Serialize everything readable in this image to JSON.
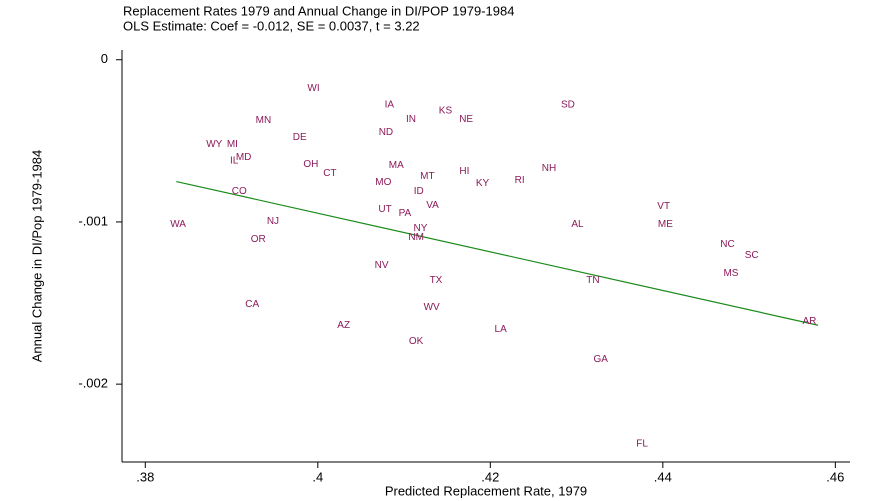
{
  "chart_data": {
    "type": "scatter",
    "title": "Replacement Rates 1979 and Annual Change in DI/POP 1979-1984",
    "subtitle": "OLS Estimate: Coef = -0.012, SE = 0.0037, t = 3.22",
    "xlabel": "Predicted Replacement Rate, 1979",
    "ylabel": "Annual Change in DI/Pop 1979-1984",
    "xlim": [
      0.3773,
      0.4617
    ],
    "ylim": [
      -0.00248,
      6e-05
    ],
    "xticks": [
      {
        "value": 0.38,
        "label": ".38"
      },
      {
        "value": 0.4,
        "label": ".4"
      },
      {
        "value": 0.42,
        "label": ".42"
      },
      {
        "value": 0.44,
        "label": ".44"
      },
      {
        "value": 0.46,
        "label": ".46"
      }
    ],
    "yticks": [
      0,
      {
        "value": -0.001,
        "label": "-.001"
      },
      {
        "value": -0.002,
        "label": "-.002"
      }
    ],
    "color": "#8b1a5a",
    "labels": [
      "WI",
      "IA",
      "KS",
      "NE",
      "SD",
      "IN",
      "MN",
      "ND",
      "DE",
      "WY",
      "MI",
      "MD",
      "IL",
      "OH",
      "MA",
      "CT",
      "NH",
      "HI",
      "MT",
      "RI",
      "KY",
      "MO",
      "ID",
      "CO",
      "VA",
      "UT",
      "PA",
      "VT",
      "WA",
      "NJ",
      "AL",
      "ME",
      "NY",
      "NM",
      "OR",
      "NC",
      "SC",
      "NV",
      "MS",
      "TX",
      "TN",
      "CA",
      "WV",
      "AZ",
      "LA",
      "AR",
      "OK",
      "GA",
      "FL"
    ],
    "x": [
      0.3995,
      0.4083,
      0.4148,
      0.4172,
      0.429,
      0.4108,
      0.3937,
      0.4079,
      0.3979,
      0.388,
      0.3901,
      0.3914,
      0.3903,
      0.3992,
      0.4091,
      0.4014,
      0.4268,
      0.417,
      0.4127,
      0.4234,
      0.4191,
      0.4076,
      0.4117,
      0.3909,
      0.4133,
      0.4078,
      0.4101,
      0.4401,
      0.3838,
      0.3948,
      0.4301,
      0.4403,
      0.4119,
      0.4114,
      0.3931,
      0.4475,
      0.4503,
      0.4074,
      0.4479,
      0.4137,
      0.4319,
      0.3924,
      0.4132,
      0.403,
      0.4212,
      0.457,
      0.4114,
      0.4328,
      0.4376
    ],
    "y": [
      -0.000178,
      -0.000277,
      -0.000314,
      -0.000369,
      -0.000277,
      -0.000369,
      -0.000375,
      -0.000449,
      -0.00048,
      -0.000523,
      -0.000523,
      -0.000603,
      -0.000622,
      -0.000646,
      -0.000652,
      -0.000702,
      -0.000671,
      -0.000689,
      -0.00072,
      -0.000745,
      -0.000763,
      -0.000757,
      -0.000812,
      -0.000812,
      -0.000898,
      -0.000923,
      -0.000948,
      -0.000905,
      -0.001015,
      -0.000997,
      -0.001015,
      -0.001015,
      -0.00104,
      -0.001095,
      -0.001108,
      -0.001138,
      -0.001206,
      -0.001268,
      -0.001317,
      -0.00136,
      -0.00136,
      -0.001508,
      -0.001526,
      -0.001637,
      -0.001662,
      -0.001612,
      -0.001735,
      -0.001846,
      -0.002369
    ],
    "fit": {
      "color": "#1a8a1a",
      "x": [
        0.3836,
        0.458
      ],
      "y": [
        -0.000751,
        -0.001637
      ]
    }
  }
}
